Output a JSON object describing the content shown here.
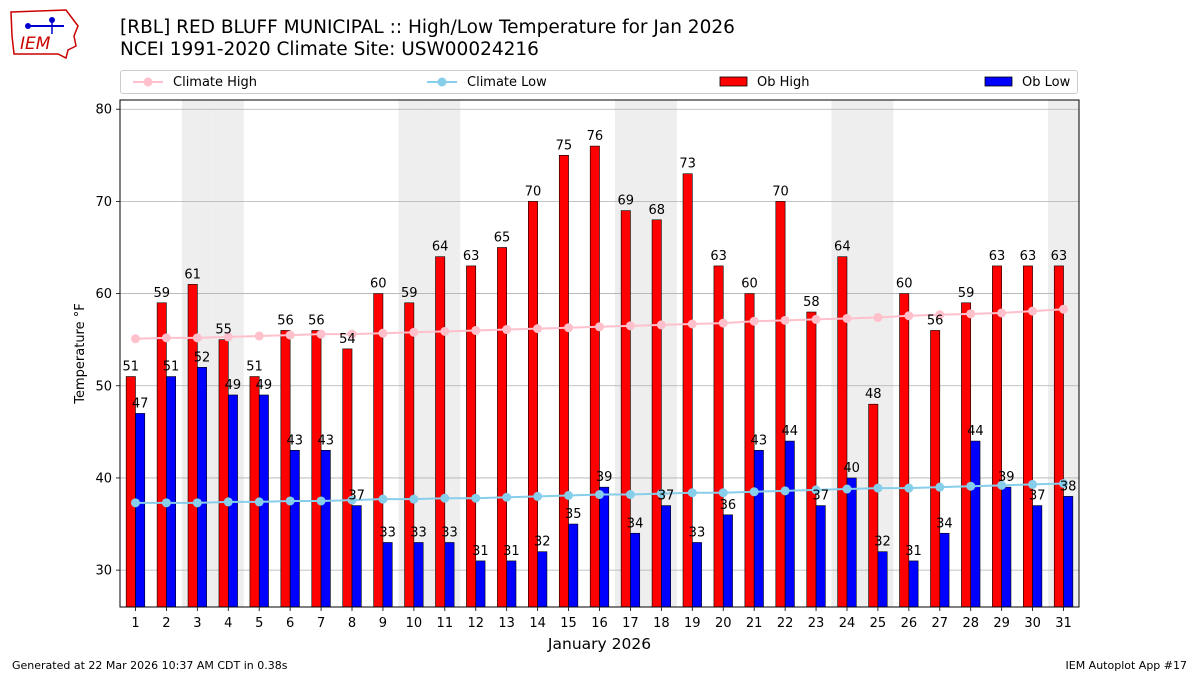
{
  "header": {
    "logo_text": "IEM",
    "title_line1": "[RBL] RED BLUFF MUNICIPAL :: High/Low Temperature for Jan 2026",
    "title_line2": "NCEI 1991-2020 Climate Site: USW00024216"
  },
  "legend": {
    "climate_high": "Climate High",
    "climate_low": "Climate Low",
    "ob_high": "Ob High",
    "ob_low": "Ob Low"
  },
  "footer": {
    "generated": "Generated at 22 Mar 2026 10:37 AM CDT in 0.38s",
    "app": "IEM Autoplot App #17"
  },
  "colors": {
    "ob_high": "#ff0000",
    "ob_low": "#0000ff",
    "climate_high": "#ffc0cb",
    "climate_low": "#87ceeb",
    "weekend_shade": "#eeeeee",
    "logo": "#cc0000"
  },
  "chart_data": {
    "type": "bar",
    "title": "[RBL] RED BLUFF MUNICIPAL :: High/Low Temperature for Jan 2026",
    "xlabel": "January 2026",
    "ylabel": "Temperature °F",
    "ylim": [
      26,
      81
    ],
    "yticks": [
      30,
      40,
      50,
      60,
      70,
      80
    ],
    "grid": true,
    "legend_position": "top",
    "categories": [
      "1",
      "2",
      "3",
      "4",
      "5",
      "6",
      "7",
      "8",
      "9",
      "10",
      "11",
      "12",
      "13",
      "14",
      "15",
      "16",
      "17",
      "18",
      "19",
      "20",
      "21",
      "22",
      "23",
      "24",
      "25",
      "26",
      "27",
      "28",
      "29",
      "30",
      "31"
    ],
    "shaded_days": [
      "3",
      "4",
      "10",
      "11",
      "17",
      "18",
      "24",
      "25",
      "31"
    ],
    "series": [
      {
        "name": "Ob High",
        "type": "bar",
        "values": [
          51,
          59,
          61,
          55,
          51,
          56,
          56,
          54,
          60,
          59,
          64,
          63,
          65,
          70,
          75,
          76,
          69,
          68,
          73,
          63,
          60,
          70,
          58,
          64,
          48,
          60,
          56,
          59,
          63,
          63,
          63
        ]
      },
      {
        "name": "Ob Low",
        "type": "bar",
        "values": [
          47,
          51,
          52,
          49,
          49,
          43,
          43,
          37,
          33,
          33,
          33,
          31,
          31,
          32,
          35,
          39,
          34,
          37,
          33,
          36,
          43,
          44,
          37,
          40,
          32,
          31,
          34,
          44,
          39,
          37,
          38
        ]
      },
      {
        "name": "Climate High",
        "type": "line",
        "values": [
          55.1,
          55.2,
          55.2,
          55.3,
          55.4,
          55.5,
          55.6,
          55.6,
          55.7,
          55.8,
          55.9,
          56.0,
          56.1,
          56.2,
          56.3,
          56.4,
          56.5,
          56.6,
          56.7,
          56.8,
          57.0,
          57.1,
          57.2,
          57.3,
          57.4,
          57.6,
          57.7,
          57.8,
          57.9,
          58.1,
          58.3
        ]
      },
      {
        "name": "Climate Low",
        "type": "line",
        "values": [
          37.3,
          37.3,
          37.3,
          37.4,
          37.4,
          37.5,
          37.5,
          37.6,
          37.7,
          37.7,
          37.8,
          37.8,
          37.9,
          38.0,
          38.1,
          38.2,
          38.2,
          38.3,
          38.4,
          38.4,
          38.5,
          38.6,
          38.7,
          38.8,
          38.9,
          38.9,
          39.0,
          39.1,
          39.2,
          39.3,
          39.4
        ]
      }
    ]
  }
}
